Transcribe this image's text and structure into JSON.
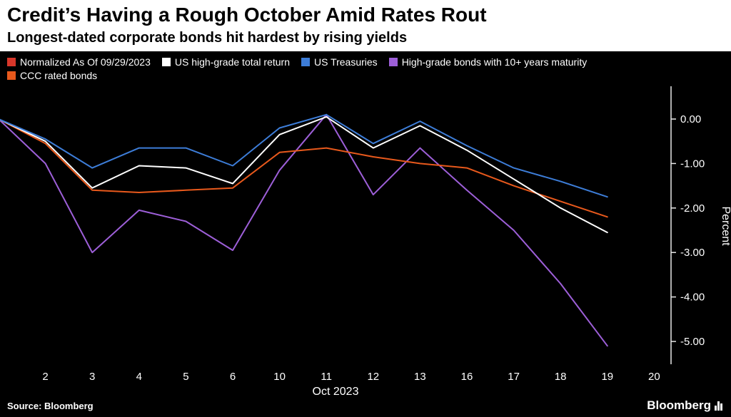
{
  "header": {
    "title": "Credit’s Having a Rough October Amid Rates Rout",
    "subtitle": "Longest-dated corporate bonds hit hardest by rising yields"
  },
  "legend": {
    "items": [
      {
        "label": "Normalized As Of 09/29/2023",
        "color": "#d8372a"
      },
      {
        "label": "US high-grade total return",
        "color": "#ffffff"
      },
      {
        "label": "US Treasuries",
        "color": "#3d7dd8"
      },
      {
        "label": "High-grade bonds with 10+ years maturity",
        "color": "#9d5fd8"
      },
      {
        "label": "CCC rated bonds",
        "color": "#e8591c"
      }
    ]
  },
  "chart_data": {
    "type": "line",
    "title": "Credit’s Having a Rough October Amid Rates Rout",
    "xlabel": "Oct 2023",
    "ylabel": "Percent",
    "x_labels": [
      "2",
      "3",
      "4",
      "5",
      "6",
      "10",
      "11",
      "12",
      "13",
      "16",
      "17",
      "18",
      "19",
      "20"
    ],
    "start_label": "09/29/2023",
    "y_ticks": [
      "0.00",
      "-1.00",
      "-2.00",
      "-3.00",
      "-4.00",
      "-5.00"
    ],
    "y_tick_values": [
      0,
      -1,
      -2,
      -3,
      -4,
      -5
    ],
    "ylim": [
      -5.5,
      0.75
    ],
    "legend_position": "top",
    "grid": "off",
    "series": [
      {
        "name": "US high-grade total return",
        "color": "#ffffff",
        "values": [
          0,
          -0.5,
          -1.55,
          -1.05,
          -1.1,
          -1.45,
          -0.35,
          0.05,
          -0.65,
          -0.15,
          -0.7,
          -1.35,
          -2.0,
          -2.55
        ]
      },
      {
        "name": "US Treasuries",
        "color": "#3d7dd8",
        "values": [
          0,
          -0.45,
          -1.1,
          -0.65,
          -0.65,
          -1.05,
          -0.2,
          0.1,
          -0.55,
          -0.05,
          -0.6,
          -1.1,
          -1.4,
          -1.75
        ]
      },
      {
        "name": "High-grade bonds with 10+ years maturity",
        "color": "#9d5fd8",
        "values": [
          0,
          -1.0,
          -3.0,
          -2.05,
          -2.3,
          -2.95,
          -1.15,
          0.1,
          -1.7,
          -0.65,
          -1.6,
          -2.5,
          -3.7,
          -5.1
        ]
      },
      {
        "name": "CCC rated bonds",
        "color": "#e8591c",
        "values": [
          0,
          -0.55,
          -1.6,
          -1.65,
          -1.6,
          -1.55,
          -0.75,
          -0.65,
          -0.85,
          -1.0,
          -1.1,
          -1.5,
          -1.85,
          -2.2
        ]
      }
    ]
  },
  "footer": {
    "source": "Source: Bloomberg",
    "logo": "Bloomberg"
  }
}
